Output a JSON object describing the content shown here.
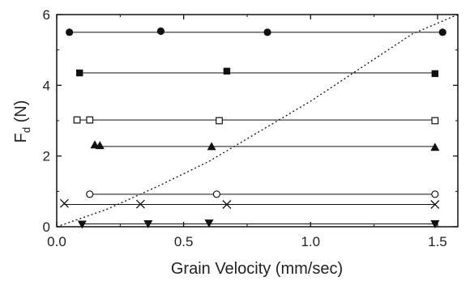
{
  "chart_data": {
    "type": "scatter",
    "xlabel": "Grain Velocity (mm/sec)",
    "ylabel_main": "F",
    "ylabel_sub": "d",
    "ylabel_unit": " (N)",
    "xlim": [
      0.0,
      1.58
    ],
    "ylim": [
      0,
      6
    ],
    "x_ticks": [
      0.0,
      0.5,
      1.0,
      1.5
    ],
    "x_tick_labels": [
      "0.0",
      "0.5",
      "1.0",
      "1.5"
    ],
    "y_ticks": [
      0,
      2,
      4,
      6
    ],
    "y_tick_labels": [
      "0",
      "2",
      "4",
      "6"
    ],
    "grid": false,
    "series": [
      {
        "marker": "filled-circle",
        "fit": 5.5,
        "x": [
          0.05,
          0.41,
          0.83,
          1.52
        ],
        "y": [
          5.5,
          5.53,
          5.5,
          5.5
        ]
      },
      {
        "marker": "filled-square",
        "fit": 4.35,
        "x": [
          0.09,
          0.67,
          1.49
        ],
        "y": [
          4.35,
          4.4,
          4.33
        ]
      },
      {
        "marker": "open-square",
        "fit": 3.02,
        "x": [
          0.08,
          0.13,
          0.64,
          1.49
        ],
        "y": [
          3.02,
          3.02,
          3.0,
          3.0
        ]
      },
      {
        "marker": "filled-triangle-up",
        "fit": 2.27,
        "x": [
          0.15,
          0.17,
          0.61,
          1.49
        ],
        "y": [
          2.32,
          2.3,
          2.27,
          2.25
        ]
      },
      {
        "marker": "open-circle",
        "fit": 0.92,
        "x": [
          0.13,
          0.63,
          1.49
        ],
        "y": [
          0.92,
          0.92,
          0.92
        ]
      },
      {
        "marker": "cross",
        "fit": 0.63,
        "x": [
          0.03,
          0.33,
          0.67,
          1.49
        ],
        "y": [
          0.66,
          0.64,
          0.63,
          0.63
        ]
      },
      {
        "marker": "filled-triangle-down",
        "fit": 0.08,
        "x": [
          0.1,
          0.36,
          0.6,
          1.49
        ],
        "y": [
          0.07,
          0.08,
          0.1,
          0.08
        ]
      }
    ],
    "reference_curve": {
      "style": "dotted",
      "x": [
        0.0,
        0.2,
        0.4,
        0.6,
        0.8,
        1.0,
        1.2,
        1.4,
        1.58
      ],
      "y": [
        0.0,
        0.5,
        1.15,
        1.85,
        2.7,
        3.55,
        4.5,
        5.45,
        6.0
      ]
    },
    "colors": {
      "ink": "#111111",
      "background": "#ffffff"
    }
  }
}
